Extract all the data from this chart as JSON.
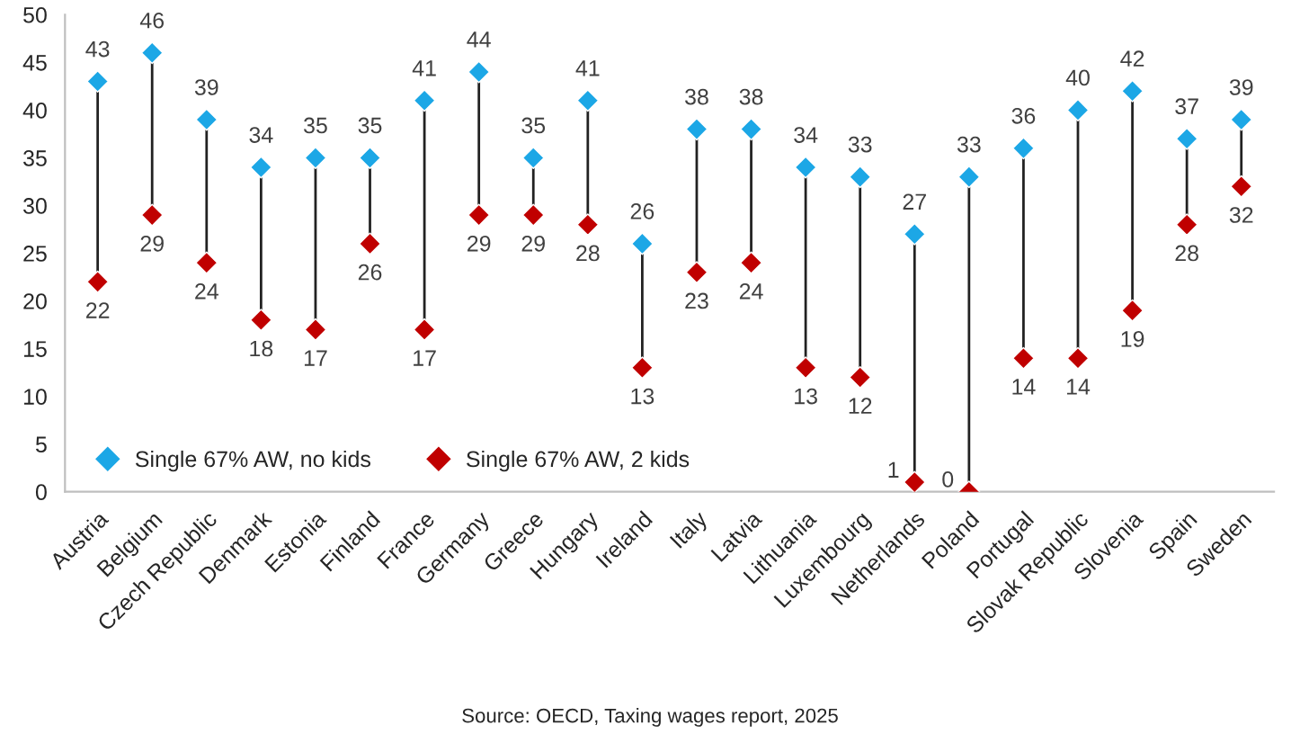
{
  "chart_data": {
    "type": "scatter",
    "categories": [
      "Austria",
      "Belgium",
      "Czech Republic",
      "Denmark",
      "Estonia",
      "Finland",
      "France",
      "Germany",
      "Greece",
      "Hungary",
      "Ireland",
      "Italy",
      "Latvia",
      "Lithuania",
      "Luxembourg",
      "Netherlands",
      "Poland",
      "Portugal",
      "Slovak Republic",
      "Slovenia",
      "Spain",
      "Sweden"
    ],
    "series": [
      {
        "name": "Single 67% AW, no kids",
        "color": "#1ca7e6",
        "values": [
          43,
          46,
          39,
          34,
          35,
          35,
          41,
          44,
          35,
          41,
          26,
          38,
          38,
          34,
          33,
          27,
          33,
          36,
          40,
          42,
          37,
          39
        ]
      },
      {
        "name": "Single 67% AW, 2 kids",
        "color": "#c00000",
        "values": [
          22,
          29,
          24,
          18,
          17,
          26,
          17,
          29,
          29,
          28,
          13,
          23,
          24,
          13,
          12,
          1,
          0,
          14,
          14,
          19,
          28,
          32
        ]
      }
    ],
    "ylim": [
      0,
      50
    ],
    "yticks": [
      0,
      5,
      10,
      15,
      20,
      25,
      30,
      35,
      40,
      45,
      50
    ],
    "data_labels": true,
    "grid": false,
    "legend": "bottom left",
    "marker": "diamond",
    "annotations": [
      "Source: OECD, Taxing wages report, 2025"
    ]
  }
}
